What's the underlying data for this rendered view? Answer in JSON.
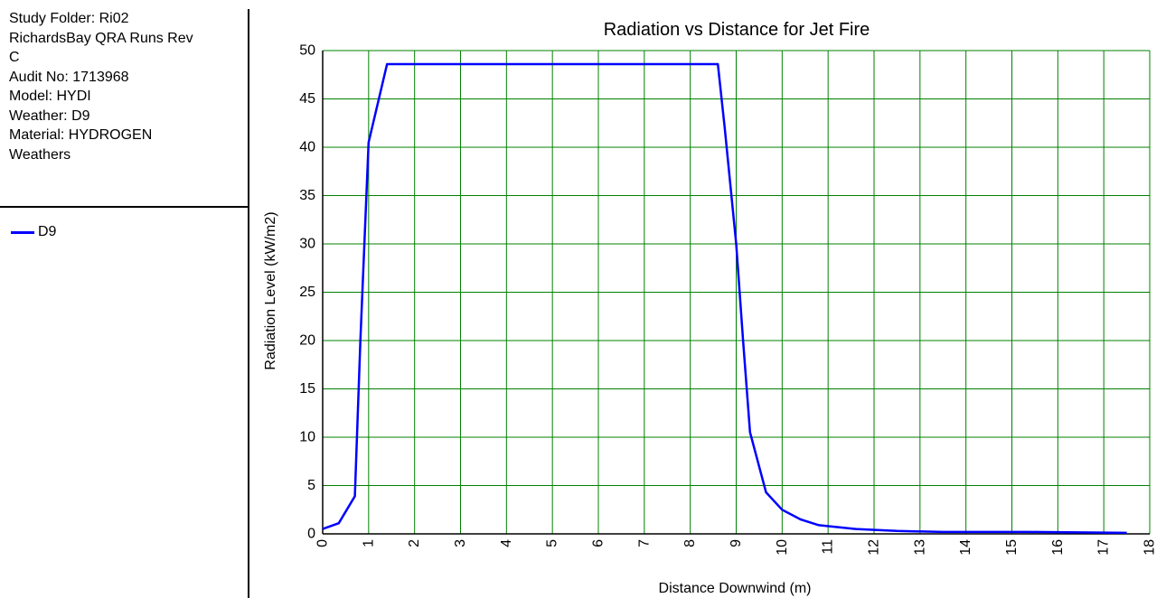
{
  "info": {
    "lines": [
      "Study Folder: Ri02",
      "RichardsBay QRA Runs Rev",
      "C",
      "Audit No: 1713968",
      "Model: HYDI",
      "Weather: D9",
      "Material: HYDROGEN",
      "Weathers"
    ]
  },
  "legend": {
    "items": [
      {
        "label": "D9",
        "color": "#0000ff"
      }
    ]
  },
  "colors": {
    "grid": "#008000",
    "series": "#0000ff",
    "axis": "#000000"
  },
  "chart_data": {
    "type": "line",
    "title": "Radiation vs Distance for Jet Fire",
    "xlabel": "Distance Downwind (m)",
    "ylabel": "Radiation Level (kW/m2)",
    "xlim": [
      0,
      18
    ],
    "ylim": [
      0,
      50
    ],
    "xticks": [
      0,
      1,
      2,
      3,
      4,
      5,
      6,
      7,
      8,
      9,
      10,
      11,
      12,
      13,
      14,
      15,
      16,
      17,
      18
    ],
    "yticks": [
      0,
      5,
      10,
      15,
      20,
      25,
      30,
      35,
      40,
      45,
      50
    ],
    "grid": true,
    "series": [
      {
        "name": "D9",
        "color": "#0000ff",
        "points": [
          [
            0,
            0.5
          ],
          [
            0.35,
            1.1
          ],
          [
            0.7,
            3.9
          ],
          [
            0.82,
            20.0
          ],
          [
            1.0,
            40.5
          ],
          [
            1.4,
            48.6
          ],
          [
            8.6,
            48.6
          ],
          [
            8.75,
            42.0
          ],
          [
            9.0,
            30.0
          ],
          [
            9.15,
            20.0
          ],
          [
            9.3,
            10.5
          ],
          [
            9.65,
            4.3
          ],
          [
            10.0,
            2.5
          ],
          [
            10.4,
            1.5
          ],
          [
            10.8,
            0.9
          ],
          [
            11.2,
            0.7
          ],
          [
            11.6,
            0.5
          ],
          [
            12.5,
            0.3
          ],
          [
            13.5,
            0.2
          ],
          [
            15.4,
            0.2
          ],
          [
            17.5,
            0.1
          ]
        ]
      }
    ]
  }
}
